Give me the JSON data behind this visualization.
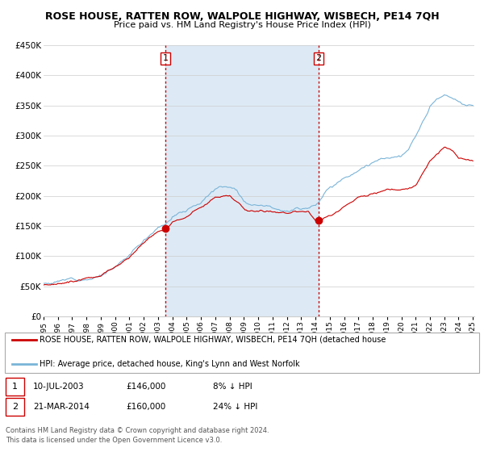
{
  "title": "ROSE HOUSE, RATTEN ROW, WALPOLE HIGHWAY, WISBECH, PE14 7QH",
  "subtitle": "Price paid vs. HM Land Registry's House Price Index (HPI)",
  "legend_line1": "ROSE HOUSE, RATTEN ROW, WALPOLE HIGHWAY, WISBECH, PE14 7QH (detached house",
  "legend_line2": "HPI: Average price, detached house, King's Lynn and West Norfolk",
  "sale1_date": "10-JUL-2003",
  "sale1_price": "£146,000",
  "sale1_hpi": "8% ↓ HPI",
  "sale2_date": "21-MAR-2014",
  "sale2_price": "£160,000",
  "sale2_hpi": "24% ↓ HPI",
  "footer1": "Contains HM Land Registry data © Crown copyright and database right 2024.",
  "footer2": "This data is licensed under the Open Government Licence v3.0.",
  "hpi_color": "#7ab4d8",
  "house_color": "#cc0000",
  "vline_color": "#cc0000",
  "shading_color": "#ddeaf5",
  "bg_color": "#ffffff",
  "grid_color": "#cccccc",
  "ylim": [
    0,
    450000
  ],
  "yticks": [
    0,
    50000,
    100000,
    150000,
    200000,
    250000,
    300000,
    350000,
    400000,
    450000
  ],
  "sale1_year": 2003.52,
  "sale2_year": 2014.22,
  "sale1_value": 146000,
  "sale2_value": 160000,
  "xstart": 1995,
  "xend": 2025
}
